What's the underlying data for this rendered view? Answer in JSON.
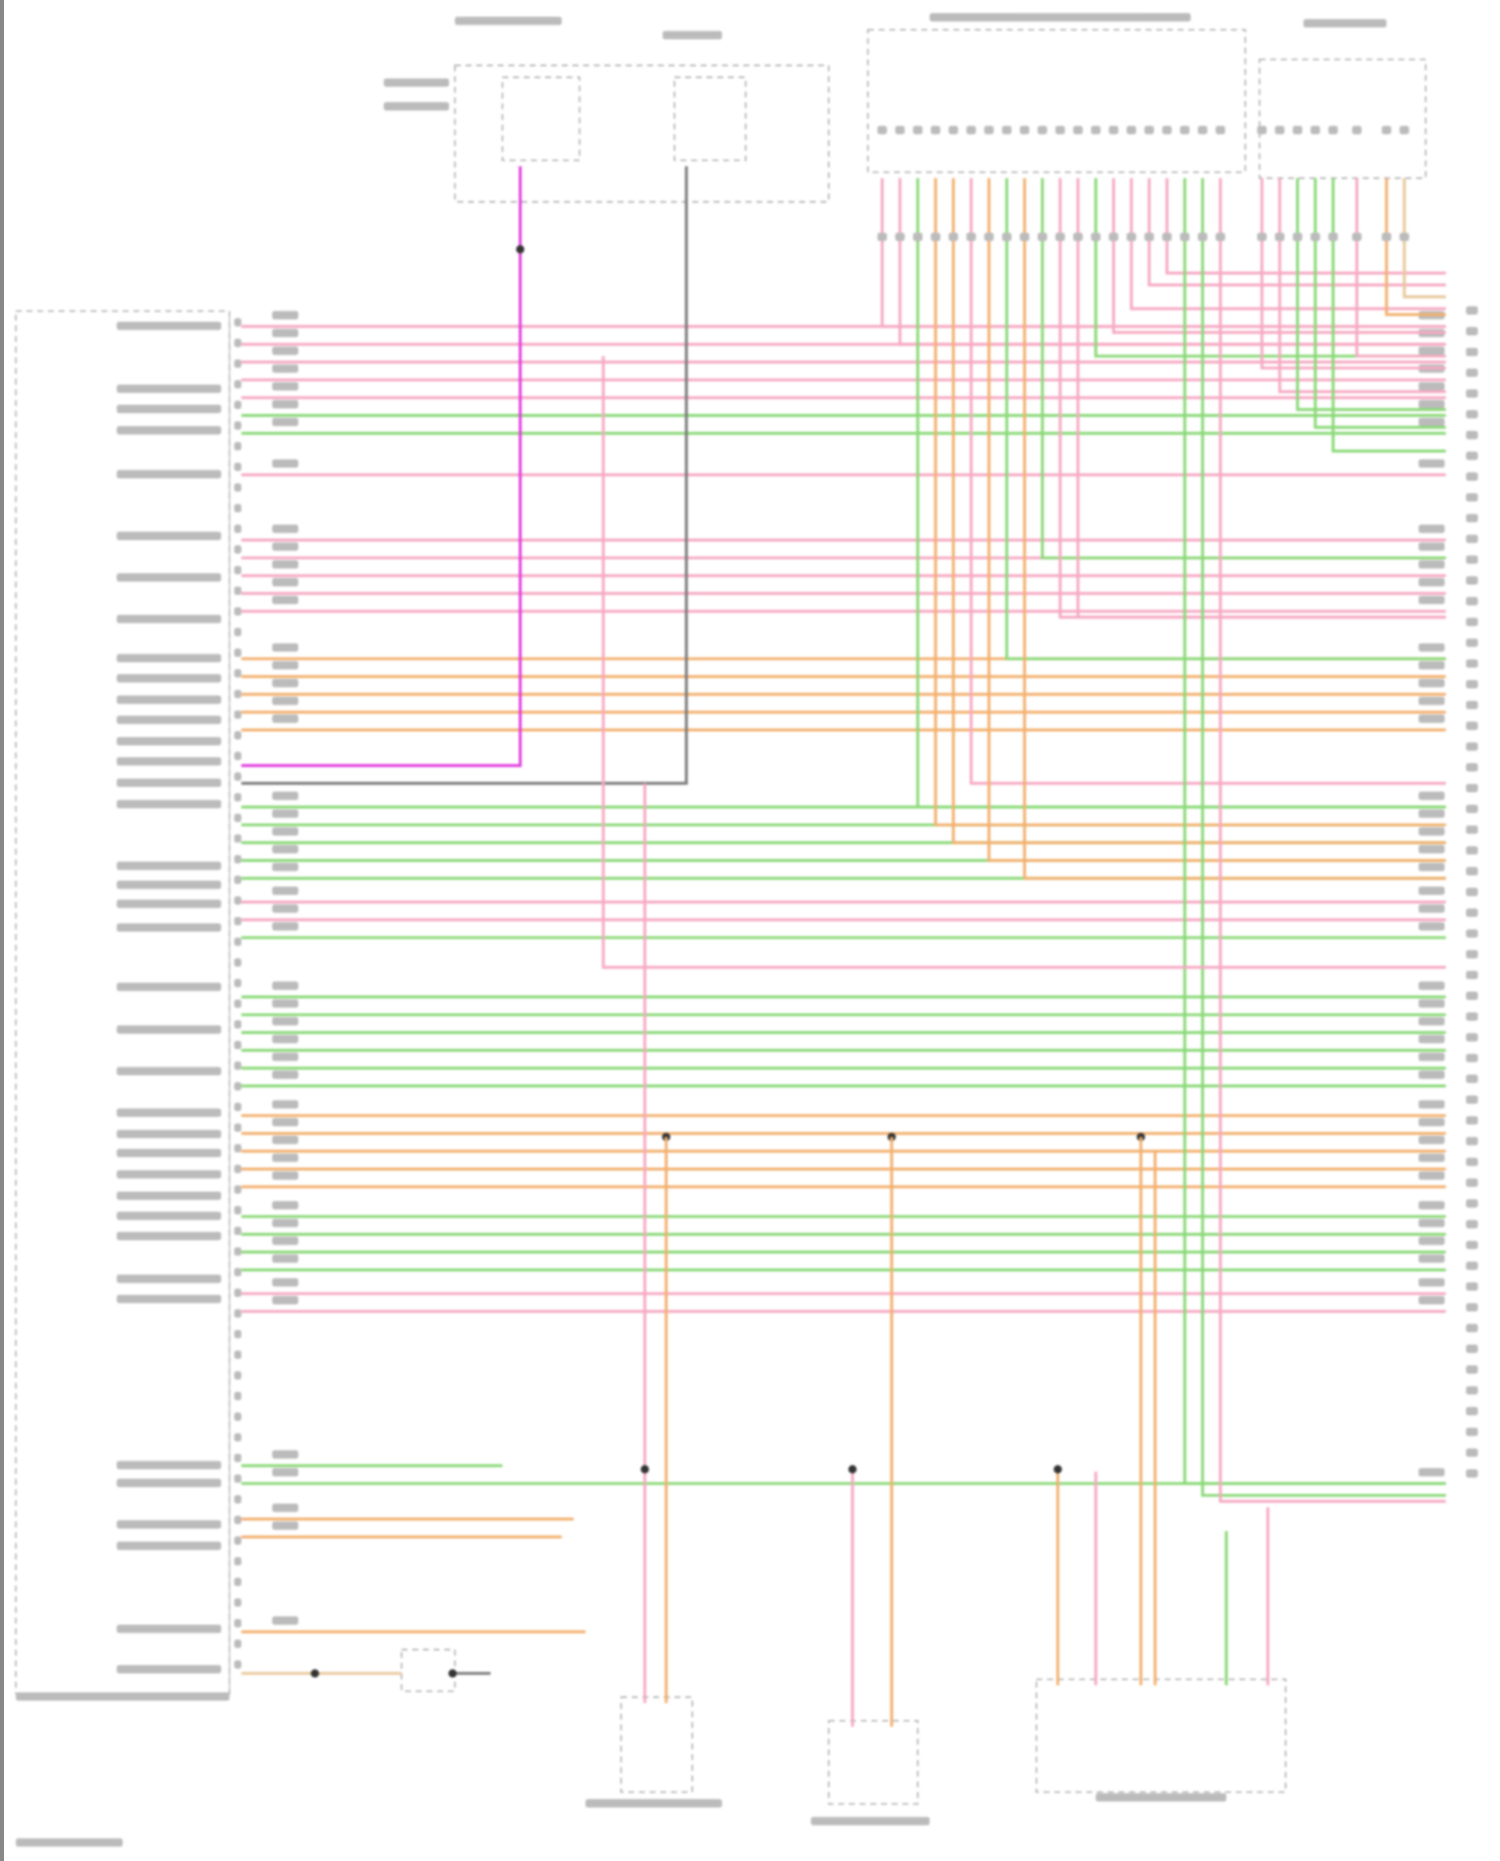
{
  "diagram": {
    "type": "wiring-schematic",
    "text_legible": false,
    "wire_colors": {
      "pink": "#f6a9c2",
      "green": "#8ad977",
      "orange": "#f3b06e",
      "magenta": "#e23be0",
      "gray": "#7a7a7a",
      "tan": "#e8c89a"
    },
    "components": [
      {
        "id": "left-connector",
        "style": "dashed"
      },
      {
        "id": "top-relay-box",
        "style": "dashed"
      },
      {
        "id": "top-control-unit",
        "style": "dashed"
      },
      {
        "id": "top-right-control-unit",
        "style": "dashed"
      },
      {
        "id": "bottom-module-1",
        "style": "dashed"
      },
      {
        "id": "bottom-module-2",
        "style": "dashed"
      },
      {
        "id": "bottom-module-3",
        "style": "dashed"
      }
    ]
  }
}
